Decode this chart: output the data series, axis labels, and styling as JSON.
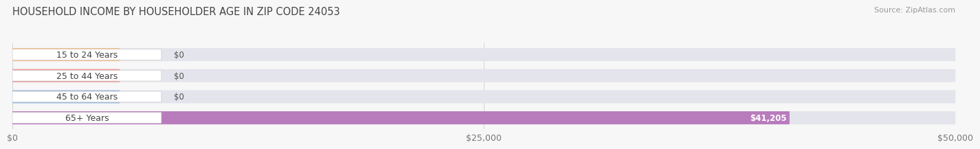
{
  "title": "HOUSEHOLD INCOME BY HOUSEHOLDER AGE IN ZIP CODE 24053",
  "source": "Source: ZipAtlas.com",
  "categories": [
    "15 to 24 Years",
    "25 to 44 Years",
    "45 to 64 Years",
    "65+ Years"
  ],
  "values": [
    0,
    0,
    0,
    41205
  ],
  "bar_colors": [
    "#f0c08a",
    "#f09898",
    "#a0bce0",
    "#b87cbd"
  ],
  "xlim_max": 50000,
  "xticks": [
    0,
    25000,
    50000
  ],
  "xtick_labels": [
    "$0",
    "$25,000",
    "$50,000"
  ],
  "background_color": "#f7f7f7",
  "bar_bg_color": "#e4e4ec",
  "title_fontsize": 10.5,
  "source_fontsize": 8,
  "tick_fontsize": 9,
  "cat_label_fontsize": 9,
  "value_label_fontsize": 8.5
}
